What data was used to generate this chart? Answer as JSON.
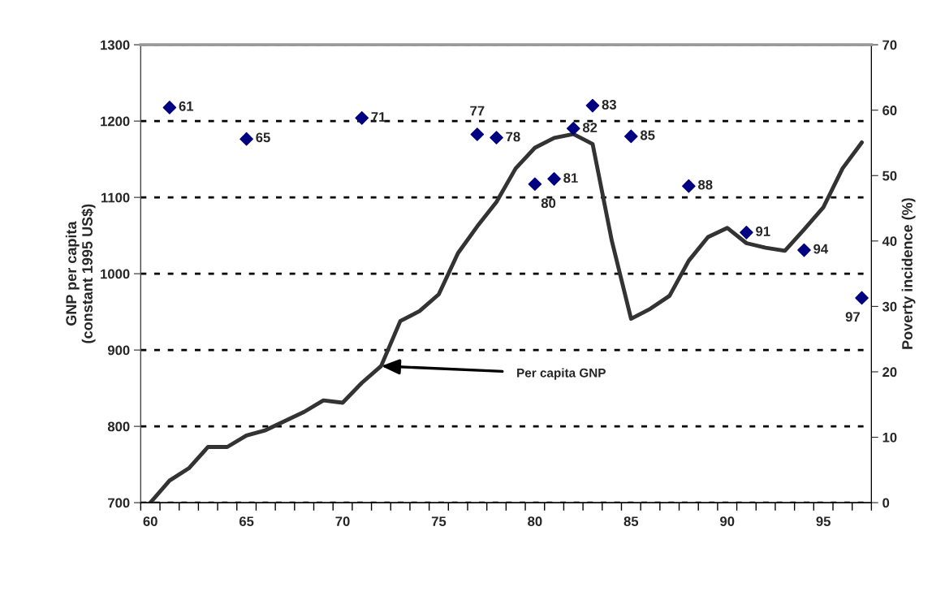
{
  "chart_data": {
    "type": "line",
    "ylabel": "GNP per capita\n(constant 1995 US$)",
    "y2label": "Poverty incidence (%)",
    "xlim": [
      59.5,
      97.5
    ],
    "xticks": [
      {
        "value": 59.5,
        "label": null
      },
      {
        "value": 60.5,
        "label": null
      },
      {
        "value": 61.5,
        "label": null
      },
      {
        "value": 62.5,
        "label": null
      },
      {
        "value": 63.5,
        "label": null
      },
      {
        "value": 64.5,
        "label": null
      },
      {
        "value": 65.5,
        "label": null
      },
      {
        "value": 66.5,
        "label": null
      },
      {
        "value": 67.5,
        "label": null
      },
      {
        "value": 68.5,
        "label": null
      },
      {
        "value": 69.5,
        "label": null
      },
      {
        "value": 70.5,
        "label": null
      },
      {
        "value": 71.5,
        "label": null
      },
      {
        "value": 72.5,
        "label": null
      },
      {
        "value": 73.5,
        "label": null
      },
      {
        "value": 74.5,
        "label": null
      },
      {
        "value": 75.5,
        "label": null
      },
      {
        "value": 76.5,
        "label": null
      },
      {
        "value": 77.5,
        "label": null
      },
      {
        "value": 78.5,
        "label": null
      },
      {
        "value": 79.5,
        "label": null
      },
      {
        "value": 80.5,
        "label": null
      },
      {
        "value": 81.5,
        "label": null
      },
      {
        "value": 82.5,
        "label": null
      },
      {
        "value": 83.5,
        "label": null
      },
      {
        "value": 84.5,
        "label": null
      },
      {
        "value": 85.5,
        "label": null
      },
      {
        "value": 86.5,
        "label": null
      },
      {
        "value": 87.5,
        "label": null
      },
      {
        "value": 88.5,
        "label": null
      },
      {
        "value": 89.5,
        "label": null
      },
      {
        "value": 90.5,
        "label": null
      },
      {
        "value": 91.5,
        "label": null
      },
      {
        "value": 92.5,
        "label": null
      },
      {
        "value": 93.5,
        "label": null
      },
      {
        "value": 94.5,
        "label": null
      },
      {
        "value": 95.5,
        "label": null
      },
      {
        "value": 96.5,
        "label": null
      },
      {
        "value": 97.5,
        "label": null
      },
      60,
      65,
      70,
      75,
      80,
      85,
      90,
      95
    ],
    "ylim": [
      700,
      1300
    ],
    "yticks": [
      700,
      800,
      900,
      1000,
      1100,
      1200,
      1300
    ],
    "y2lim": [
      0,
      70
    ],
    "y2ticks": [
      0,
      10,
      20,
      30,
      40,
      50,
      60,
      70
    ],
    "grid": "y",
    "legend": false,
    "series": [
      {
        "axis": "y",
        "color": "#333333",
        "line_style": "solid",
        "marker": "none",
        "x": [
          60,
          61,
          62,
          63,
          64,
          65,
          66,
          67,
          68,
          69,
          70,
          71,
          72,
          73,
          74,
          75,
          76,
          77,
          78,
          79,
          80,
          81,
          82,
          83,
          84,
          85,
          86,
          87,
          88,
          89,
          90,
          91,
          92,
          93,
          94,
          95,
          96,
          97
        ],
        "values": [
          700,
          729,
          745,
          773,
          773,
          788,
          795,
          807,
          819,
          834,
          831,
          857,
          879,
          938,
          951,
          973,
          1027,
          1062,
          1094,
          1138,
          1165,
          1178,
          1183,
          1170,
          1043,
          941,
          954,
          971,
          1017,
          1048,
          1060,
          1040,
          1034,
          1030,
          1058,
          1087,
          1138,
          1172
        ]
      },
      {
        "type": "scatter",
        "axis": "y2",
        "color": "#000080",
        "marker": "diamond",
        "x": [
          61,
          65,
          71,
          77,
          78,
          80,
          81,
          82,
          83,
          85,
          88,
          91,
          94,
          97
        ],
        "values": [
          60.4,
          55.6,
          58.8,
          56.3,
          55.8,
          48.7,
          49.5,
          57.2,
          60.7,
          56.0,
          48.4,
          41.3,
          38.6,
          31.3
        ]
      }
    ],
    "annotations": [
      {
        "text": "Per capita GNP",
        "x": 72,
        "y": 879
      },
      {
        "text": "61",
        "x": 61,
        "y": 1218
      },
      {
        "text": "65",
        "x": 65,
        "y": 1177
      },
      {
        "text": "71",
        "x": 71,
        "y": 1204
      },
      {
        "text": "77",
        "x": 77,
        "y": 1183
      },
      {
        "text": "78",
        "x": 78,
        "y": 1178
      },
      {
        "text": "80",
        "x": 80,
        "y": 1117
      },
      {
        "text": "81",
        "x": 81,
        "y": 1124
      },
      {
        "text": "82",
        "x": 82,
        "y": 1190
      },
      {
        "text": "83",
        "x": 83,
        "y": 1220
      },
      {
        "text": "85",
        "x": 85,
        "y": 1180
      },
      {
        "text": "88",
        "x": 88,
        "y": 1115
      },
      {
        "text": "91",
        "x": 91,
        "y": 1054
      },
      {
        "text": "94",
        "x": 94,
        "y": 1031
      },
      {
        "text": "97",
        "x": 97,
        "y": 968
      }
    ]
  }
}
